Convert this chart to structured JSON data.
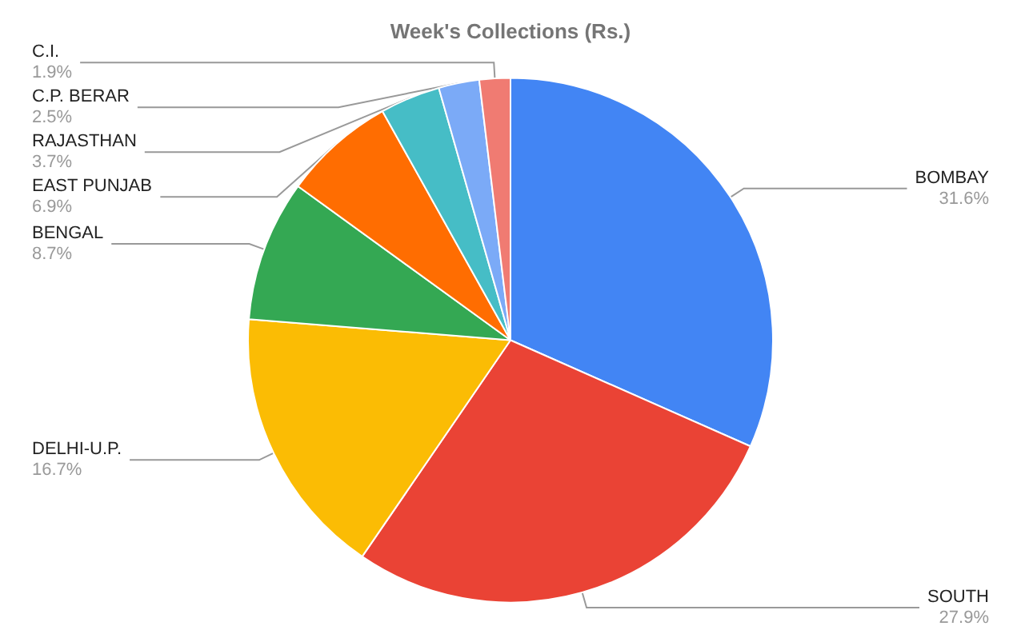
{
  "chart_data": {
    "type": "pie",
    "title": "Week's Collections (Rs.)",
    "categories": [
      "BOMBAY",
      "SOUTH",
      "DELHI-U.P.",
      "BENGAL",
      "EAST PUNJAB",
      "RAJASTHAN",
      "C.P. BERAR",
      "C.I."
    ],
    "values": [
      31.6,
      27.9,
      16.7,
      8.7,
      6.9,
      3.7,
      2.5,
      1.9
    ],
    "value_labels": [
      "31.6%",
      "27.9%",
      "16.7%",
      "8.7%",
      "6.9%",
      "3.7%",
      "2.5%",
      "1.9%"
    ],
    "colors": [
      "#4285f4",
      "#ea4335",
      "#fbbc04",
      "#34a853",
      "#ff6d01",
      "#46bdc6",
      "#7baaf7",
      "#f07b72"
    ],
    "legend": false
  }
}
